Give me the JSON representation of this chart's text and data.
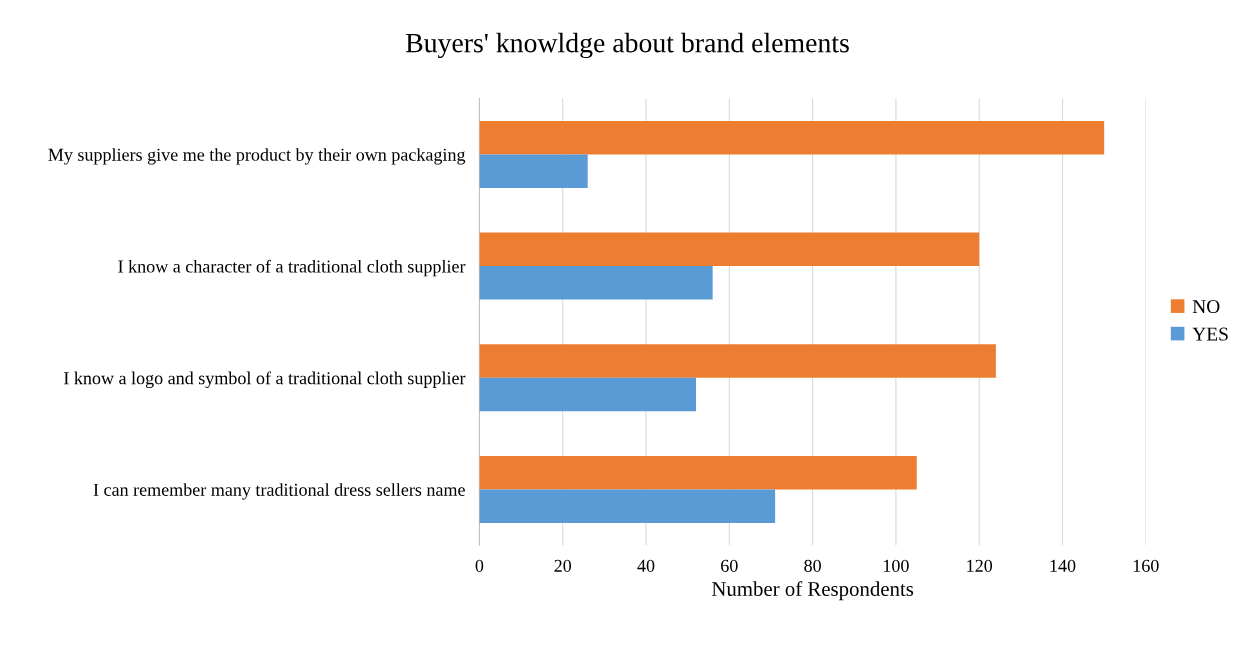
{
  "chart_data": {
    "type": "bar",
    "orientation": "horizontal",
    "title": "Buyers' knowldge about brand elements",
    "xlabel": "Number of Respondents",
    "categories": [
      "My suppliers give me the product by their own packaging",
      "I know a character of a traditional cloth supplier",
      "I know a logo and symbol of a traditional cloth supplier",
      "I can remember many traditional dress sellers name"
    ],
    "series": [
      {
        "name": "NO",
        "color": "#ed7d31",
        "values": [
          150,
          120,
          124,
          105
        ]
      },
      {
        "name": "YES",
        "color": "#5b9bd5",
        "values": [
          26,
          56,
          52,
          71
        ]
      }
    ],
    "xlim": [
      0,
      160
    ],
    "xticks": [
      0,
      20,
      40,
      60,
      80,
      100,
      120,
      140,
      160
    ],
    "grid": "x",
    "legend": "right"
  }
}
